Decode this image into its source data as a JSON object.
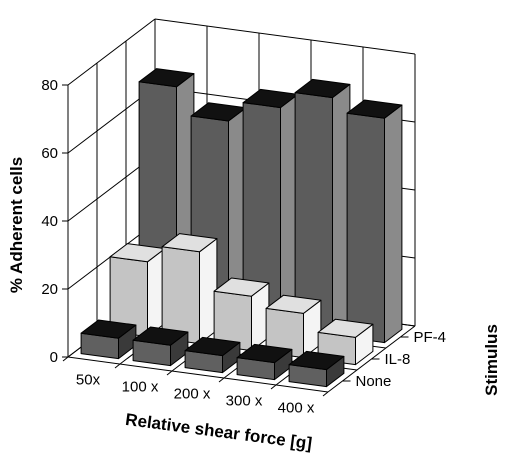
{
  "chart_data": {
    "type": "bar3d",
    "xlabel": "Relative shear force [g]",
    "ylabel": "% Adherent cells",
    "zlabel": "Stimulus",
    "categories": [
      "50x",
      "100 x",
      "200 x",
      "300 x",
      "400 x"
    ],
    "series": [
      {
        "name": "None",
        "values": [
          6,
          6,
          5,
          5,
          5
        ]
      },
      {
        "name": "IL-8",
        "values": [
          22,
          27,
          16,
          13,
          8
        ]
      },
      {
        "name": "PF-4",
        "values": [
          67,
          59,
          65,
          70,
          66
        ]
      }
    ],
    "yticks": [
      0,
      20,
      40,
      60,
      80
    ],
    "ylim": [
      0,
      80
    ],
    "grid": true,
    "legend": "none",
    "colors": {
      "None": {
        "front": "#606060",
        "side": "#3a3a3a",
        "top": "#111111"
      },
      "IL-8": {
        "front": "#c4c4c4",
        "side": "#f4f4f4",
        "top": "#e0e0e0"
      },
      "PF-4": {
        "front": "#5c5c5c",
        "side": "#8a8a8a",
        "top": "#111111"
      }
    }
  }
}
